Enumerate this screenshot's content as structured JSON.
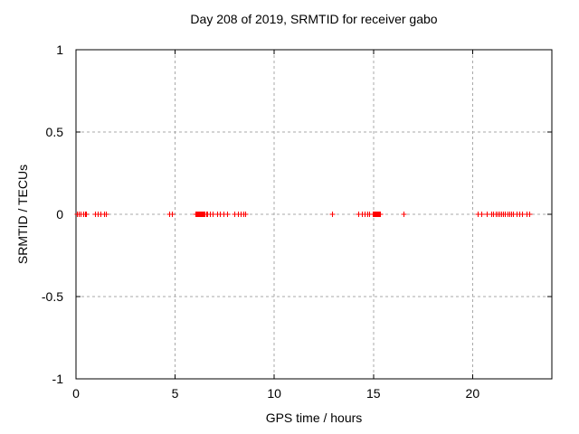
{
  "chart_data": {
    "type": "scatter",
    "title": "Day 208 of 2019, SRMTID for receiver gabo",
    "xlabel": "GPS time / hours",
    "ylabel": "SRMTID / TECUs",
    "xlim": [
      0,
      24
    ],
    "ylim": [
      -1,
      1
    ],
    "xticks": [
      0,
      5,
      10,
      15,
      20
    ],
    "xtick_labels": [
      "0",
      "5",
      "10",
      "15",
      "20"
    ],
    "yticks": [
      -1,
      -0.5,
      0,
      0.5,
      1
    ],
    "ytick_labels": [
      "-1",
      "-0.5",
      "0",
      "0.5",
      "1"
    ],
    "grid": true,
    "legend": "none",
    "marker": "plus",
    "colors": {
      "marker": "#ff0000",
      "grid": "#a9a9a9",
      "axis": "#000000",
      "background": "#ffffff",
      "text": "#000000"
    },
    "series": [
      {
        "name": "SRMTID",
        "y_value": 0,
        "x": [
          0.05,
          0.15,
          0.25,
          0.35,
          0.45,
          0.5,
          0.95,
          1.1,
          1.25,
          1.4,
          1.5,
          4.7,
          4.85,
          6.0,
          6.05,
          6.1,
          6.15,
          6.2,
          6.25,
          6.3,
          6.35,
          6.4,
          6.45,
          6.5,
          6.55,
          6.6,
          6.75,
          6.9,
          7.1,
          7.25,
          7.45,
          7.6,
          8.0,
          8.15,
          8.3,
          8.45,
          8.55,
          12.9,
          14.25,
          14.4,
          14.55,
          14.7,
          14.8,
          14.95,
          15.0,
          15.05,
          15.1,
          15.15,
          15.2,
          15.25,
          15.3,
          15.35,
          16.5,
          20.25,
          20.45,
          20.7,
          20.95,
          21.05,
          21.15,
          21.25,
          21.35,
          21.45,
          21.55,
          21.65,
          21.75,
          21.85,
          21.95,
          22.05,
          22.2,
          22.35,
          22.5,
          22.7,
          22.85
        ]
      }
    ]
  }
}
